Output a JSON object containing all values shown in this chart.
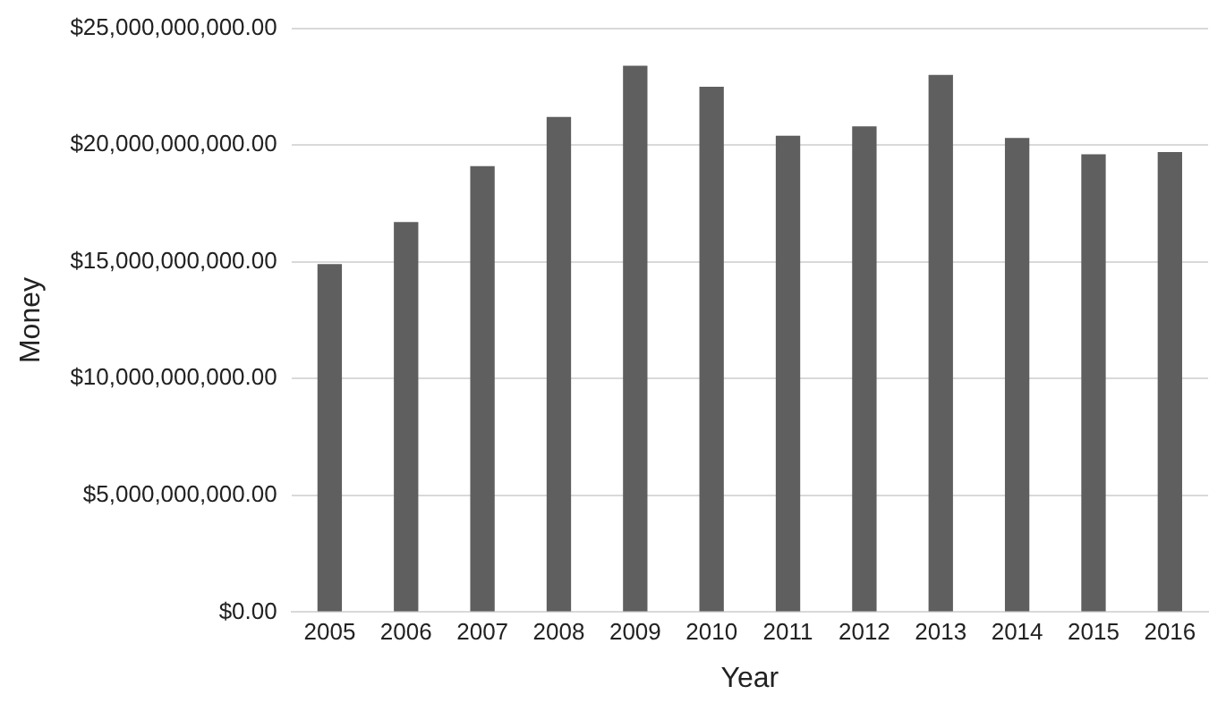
{
  "chart_data": {
    "type": "bar",
    "xlabel": "Year",
    "ylabel": "Money",
    "categories": [
      "2005",
      "2006",
      "2007",
      "2008",
      "2009",
      "2010",
      "2011",
      "2012",
      "2013",
      "2014",
      "2015",
      "2016"
    ],
    "values": [
      14900000000,
      16700000000,
      19100000000,
      21200000000,
      23400000000,
      22500000000,
      20400000000,
      20800000000,
      23000000000,
      20300000000,
      19600000000,
      19700000000
    ],
    "color": "#5f5f5f",
    "ylim": [
      0,
      25000000000
    ],
    "yticks": [
      {
        "value": 0,
        "label": "$0.00"
      },
      {
        "value": 5000000000,
        "label": "$5,000,000,000.00"
      },
      {
        "value": 10000000000,
        "label": "$10,000,000,000.00"
      },
      {
        "value": 15000000000,
        "label": "$15,000,000,000.00"
      },
      {
        "value": 20000000000,
        "label": "$20,000,000,000.00"
      },
      {
        "value": 25000000000,
        "label": "$25,000,000,000.00"
      }
    ],
    "grid": "y",
    "legend": false
  }
}
